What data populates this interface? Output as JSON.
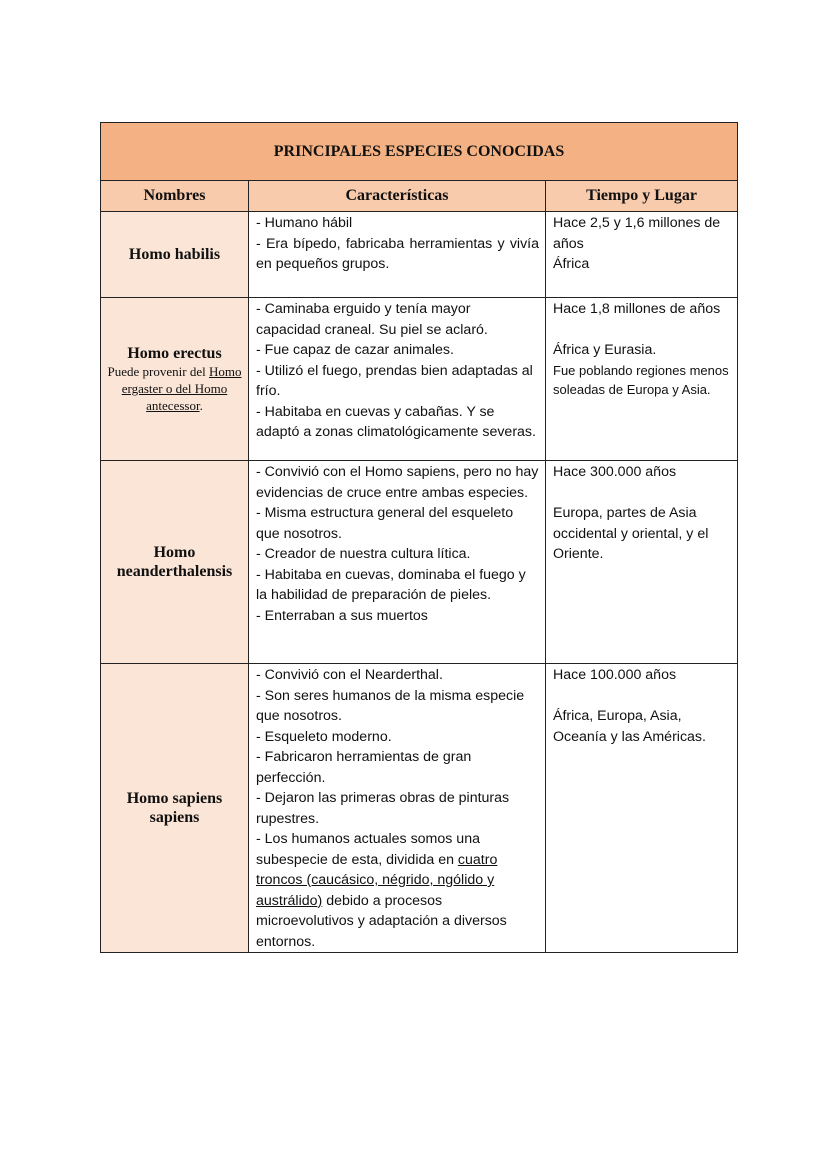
{
  "title": "PRINCIPALES ESPECIES CONOCIDAS",
  "headers": {
    "names": "Nombres",
    "characteristics": "Características",
    "time_place": "Tiempo y Lugar"
  },
  "colors": {
    "title_bg": "#F4B183",
    "header_bg": "#F8CBAD",
    "name_bg": "#FBE5D6"
  },
  "rows": [
    {
      "name": "Homo habilis",
      "characteristics": [
        "- Humano hábil",
        "- Era bípedo, fabricaba herramientas y vivía en pequeños grupos."
      ],
      "time": "Hace 2,5 y 1,6 millones de años",
      "place": "África"
    },
    {
      "name": "Homo erectus",
      "note_pre": "Puede provenir del",
      "note_link": "Homo ergaster o del Homo antecessor",
      "note_post": ".",
      "characteristics": [
        "- Caminaba erguido y tenía mayor capacidad craneal. Su piel se aclaró.",
        "- Fue capaz de cazar animales.",
        "- Utilizó el fuego, prendas bien adaptadas al frío.",
        "- Habitaba en cuevas y cabañas. Y se adaptó a zonas climatológicamente severas."
      ],
      "time": "Hace 1,8 millones de años",
      "place": "África y Eurasia.",
      "place_note": "Fue poblando regiones menos soleadas de Europa y Asia."
    },
    {
      "name": "Homo neanderthalensis",
      "characteristics": [
        "- Convivió con el Homo sapiens, pero no hay evidencias de cruce entre ambas especies.",
        "- Misma estructura general del esqueleto que nosotros.",
        "- Creador de nuestra cultura lítica.",
        "- Habitaba en cuevas, dominaba el fuego y la habilidad de preparación de pieles.",
        "- Enterraban a sus muertos"
      ],
      "time": "Hace 300.000 años",
      "place": "Europa, partes de Asia occidental y oriental, y el Oriente."
    },
    {
      "name": "Homo sapiens sapiens",
      "characteristics": [
        "- Convivió con el Nearderthal.",
        "- Son seres humanos de la misma especie que nosotros.",
        "- Esqueleto moderno.",
        "- Fabricaron herramientas de gran perfección.",
        "- Dejaron las primeras obras de pinturas rupestres."
      ],
      "last_pre": "- Los humanos actuales somos una subespecie de esta, dividida en ",
      "last_link": "cuatro troncos (caucásico, négrido, ngólido y austrálido)",
      "last_post": " debido a procesos microevolutivos y adaptación a diversos entornos.",
      "time": "Hace 100.000 años",
      "place": "África, Europa, Asia, Oceanía y las Américas."
    }
  ]
}
